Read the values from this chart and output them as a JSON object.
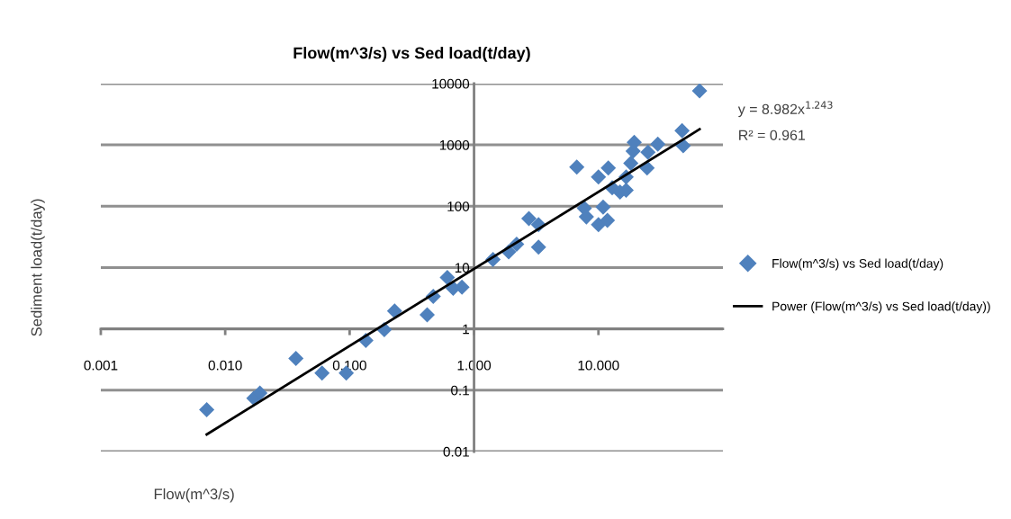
{
  "chart_data": {
    "type": "scatter",
    "title": "Flow(m^3/s) vs Sed load(t/day)",
    "xlabel": "Flow(m^3/s)",
    "ylabel": "Sediment load(t/day)",
    "log": "xy",
    "xlim": [
      0.001,
      100
    ],
    "ylim": [
      0.01,
      10000
    ],
    "xticks": [
      {
        "value": 0.001,
        "label": "0.001"
      },
      {
        "value": 0.01,
        "label": "0.010"
      },
      {
        "value": 0.1,
        "label": "0.100"
      },
      {
        "value": 1,
        "label": "1.000"
      },
      {
        "value": 10,
        "label": "10.000"
      }
    ],
    "yticks": [
      0.01,
      0.1,
      1,
      10,
      100,
      1000,
      10000
    ],
    "grid": "y",
    "legend": "right",
    "marker": "diamond",
    "annotations": [
      "y = 8.982x$^{1.243}$",
      "R² = 0.961"
    ],
    "series": [
      {
        "name": "Flow(m^3/s) vs Sed load(t/day)",
        "color": "#4f81bd",
        "x": [
          0.0071,
          0.017,
          0.019,
          0.037,
          0.06,
          0.094,
          0.135,
          0.19,
          0.23,
          0.42,
          0.47,
          0.61,
          0.68,
          0.8,
          1.42,
          1.9,
          2.2,
          2.76,
          3.3,
          3.3,
          6.7,
          7.7,
          8.0,
          10,
          10.9,
          11.8,
          10,
          12,
          12.9,
          14.9,
          16.7,
          16.7,
          18.2,
          19,
          19.4,
          24.6,
          25,
          30,
          47,
          48,
          65
        ],
        "values": [
          0.048,
          0.074,
          0.09,
          0.33,
          0.19,
          0.19,
          0.65,
          0.97,
          1.95,
          1.7,
          3.4,
          6.9,
          4.6,
          4.8,
          13.5,
          18,
          24,
          63,
          50,
          21.5,
          436,
          93,
          67,
          50,
          97,
          59,
          300,
          420,
          200,
          170,
          182,
          300,
          500,
          790,
          1100,
          420,
          760,
          1030,
          1700,
          970,
          7600
        ]
      },
      {
        "name": "Power (Flow(m^3/s) vs Sed load(t/day))",
        "type": "line",
        "color": "#000000",
        "marker": "none",
        "x": [
          0.0071,
          65
        ],
        "values": [
          0.019,
          1800
        ]
      }
    ]
  }
}
